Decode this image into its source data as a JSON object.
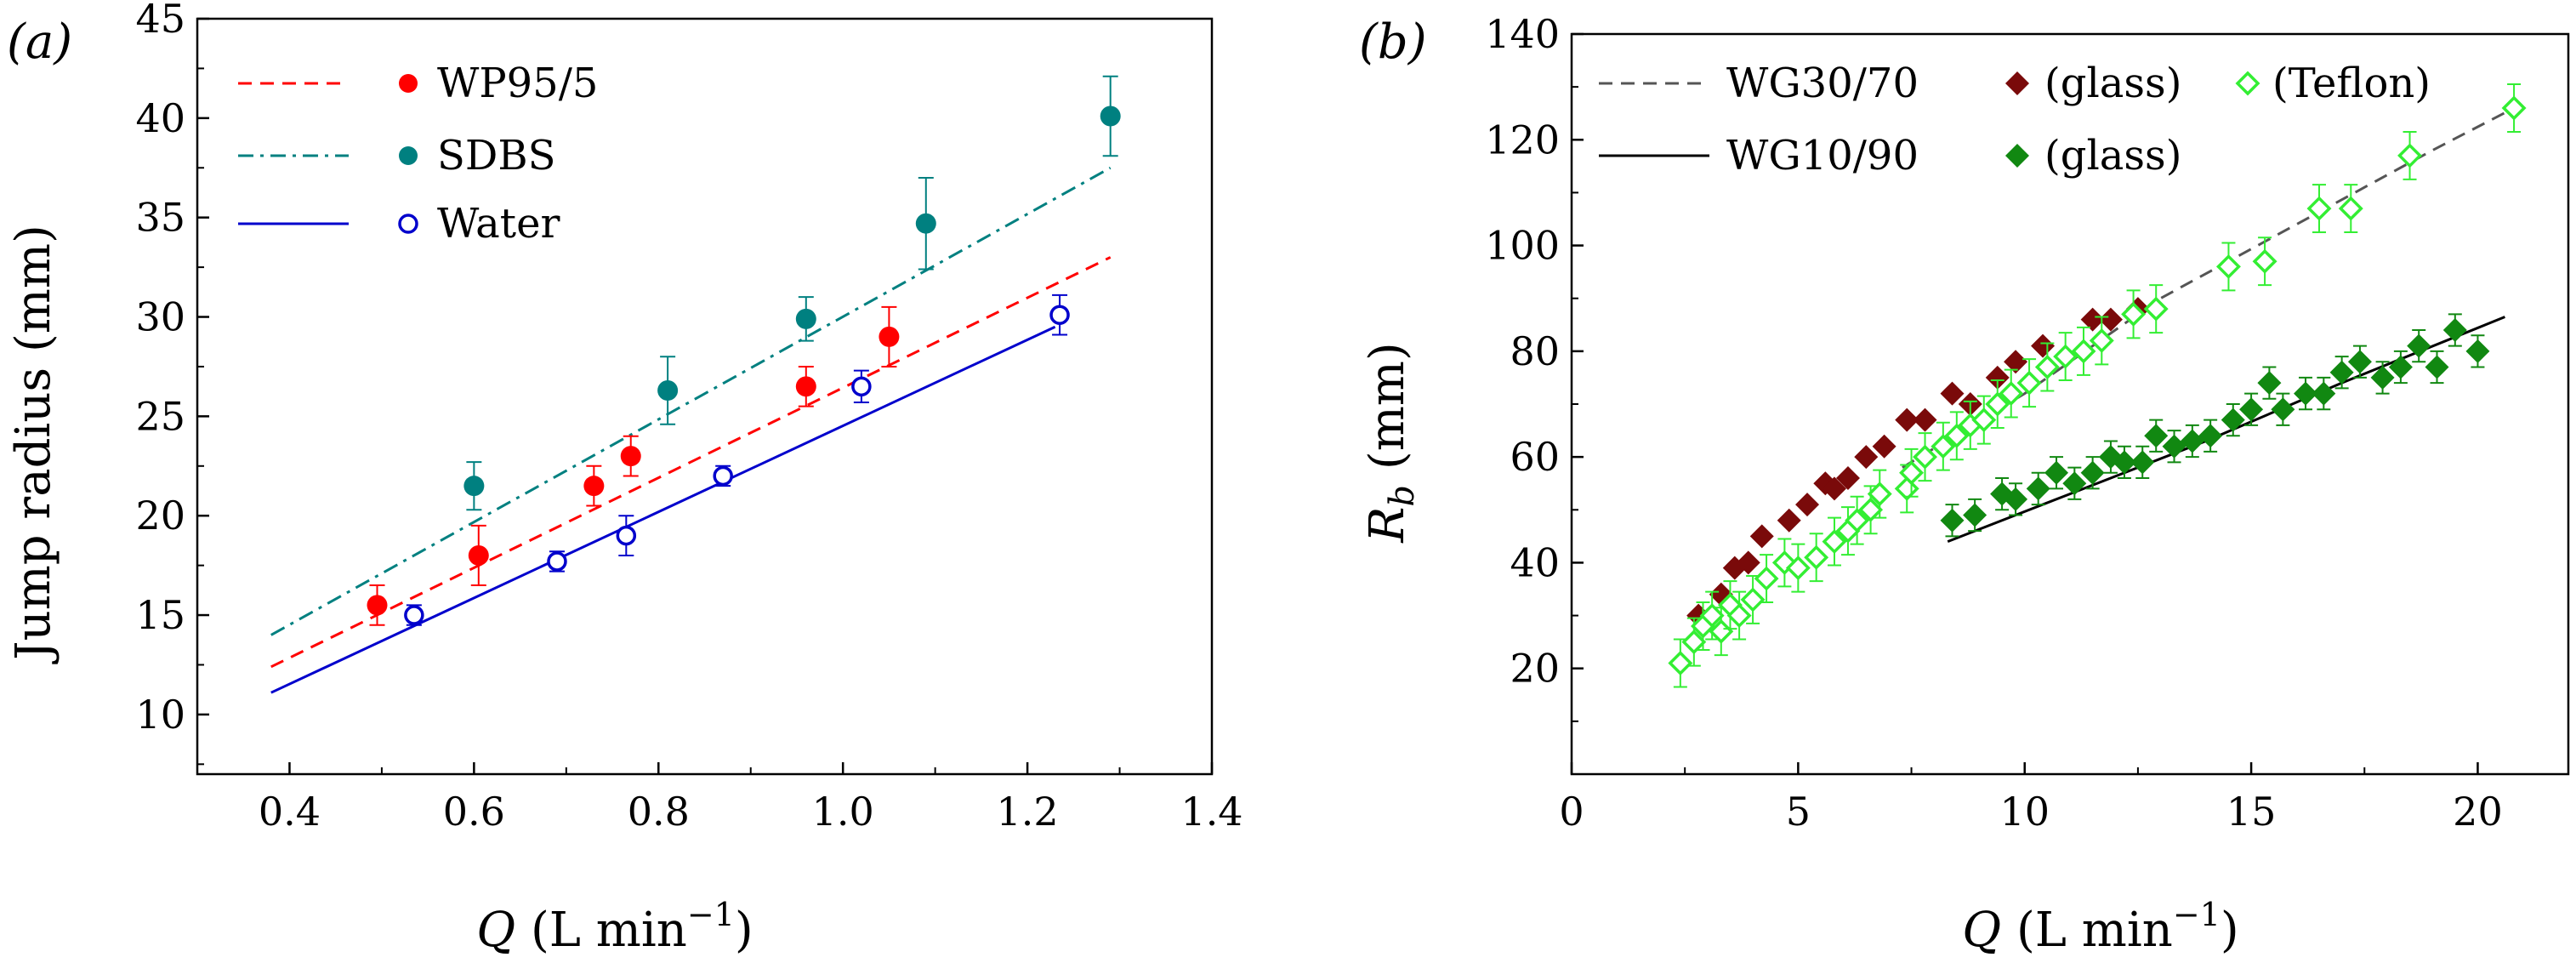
{
  "chart_data": [
    {
      "type": "scatter",
      "panel_label": "(a)",
      "ylabel": "Jump radius (mm)",
      "xlabel": {
        "var": "Q",
        "unit_pre": " (L min",
        "exp": "−1",
        "unit_post": ")"
      },
      "xlim": [
        0.3,
        1.4
      ],
      "ylim": [
        7,
        45
      ],
      "xticks": [
        0.4,
        0.6,
        0.8,
        1.0,
        1.2,
        1.4
      ],
      "xtick_labels": [
        "0.4",
        "0.6",
        "0.8",
        "1.0",
        "1.2",
        "1.4"
      ],
      "yticks": [
        10,
        15,
        20,
        25,
        30,
        35,
        40,
        45
      ],
      "ytick_labels": [
        "10",
        "15",
        "20",
        "25",
        "30",
        "35",
        "40",
        "45"
      ],
      "legend_position": "top-left",
      "series": [
        {
          "name": "WP95/5",
          "color": "#ff0000",
          "marker": "circle-filled",
          "line": "dashed",
          "fit": [
            [
              0.38,
              12.4
            ],
            [
              1.29,
              33.0
            ]
          ],
          "points": [
            [
              0.495,
              15.5,
              1.0
            ],
            [
              0.605,
              18.0,
              1.5
            ],
            [
              0.73,
              21.5,
              1.0
            ],
            [
              0.77,
              23.0,
              1.0
            ],
            [
              0.96,
              26.5,
              1.0
            ],
            [
              1.05,
              29.0,
              1.5
            ]
          ]
        },
        {
          "name": "SDBS",
          "color": "#008080",
          "marker": "circle-filled",
          "line": "dashdot",
          "fit": [
            [
              0.38,
              14.0
            ],
            [
              1.29,
              37.5
            ]
          ],
          "points": [
            [
              0.6,
              21.5,
              1.2
            ],
            [
              0.81,
              26.3,
              1.7
            ],
            [
              0.96,
              29.9,
              1.1
            ],
            [
              1.09,
              34.7,
              2.3
            ],
            [
              1.29,
              40.1,
              2.0
            ]
          ]
        },
        {
          "name": "Water",
          "color": "#0000cc",
          "marker": "circle-open",
          "line": "solid",
          "fit": [
            [
              0.38,
              11.1
            ],
            [
              1.23,
              29.5
            ]
          ],
          "points": [
            [
              0.535,
              15.0,
              0.5
            ],
            [
              0.69,
              17.7,
              0.5
            ],
            [
              0.765,
              19.0,
              1.0
            ],
            [
              0.87,
              22.0,
              0.5
            ],
            [
              1.02,
              26.5,
              0.8
            ],
            [
              1.235,
              30.1,
              1.0
            ]
          ]
        }
      ]
    },
    {
      "type": "scatter",
      "panel_label": "(b)",
      "ylabel": {
        "var": "R",
        "sub": "b",
        "unit": " (mm)"
      },
      "xlabel": {
        "var": "Q",
        "unit_pre": " (L min",
        "exp": "−1",
        "unit_post": ")"
      },
      "xlim": [
        0,
        22
      ],
      "ylim": [
        0,
        140
      ],
      "xticks": [
        0,
        5,
        10,
        15,
        20
      ],
      "xtick_labels": [
        "0",
        "5",
        "10",
        "15",
        "20"
      ],
      "yticks": [
        20,
        40,
        60,
        80,
        100,
        120,
        140
      ],
      "ytick_labels": [
        "20",
        "40",
        "60",
        "80",
        "100",
        "120",
        "140"
      ],
      "legend_position": "top-left",
      "legend": [
        {
          "line_label": "WG30/70",
          "line": "dashed",
          "line_color": "#555555",
          "entries": [
            {
              "label": "(glass)",
              "marker": "diamond-filled",
              "color": "#7a0a0a"
            },
            {
              "label": "(Teflon)",
              "marker": "diamond-open",
              "color": "#33ee33"
            }
          ]
        },
        {
          "line_label": "WG10/90",
          "line": "solid",
          "line_color": "#000000",
          "entries": [
            {
              "label": "(glass)",
              "marker": "diamond-filled",
              "color": "#118811"
            }
          ]
        }
      ],
      "fits": [
        {
          "name": "WG30/70",
          "line": "dashed",
          "color": "#555555",
          "points": [
            [
              7.3,
              58
            ],
            [
              10,
              72
            ],
            [
              13,
              90
            ],
            [
              16,
              104
            ],
            [
              19,
              118
            ],
            [
              20.8,
              126
            ]
          ]
        },
        {
          "name": "WG10/90",
          "line": "solid",
          "color": "#000000",
          "points": [
            [
              8.3,
              44
            ],
            [
              11,
              53
            ],
            [
              14,
              63
            ],
            [
              17,
              74
            ],
            [
              20.6,
              86.5
            ]
          ]
        }
      ],
      "series": [
        {
          "name": "WG30/70 (glass)",
          "color": "#7a0a0a",
          "marker": "diamond-filled",
          "points": [
            [
              2.8,
              30
            ],
            [
              3.3,
              34
            ],
            [
              3.6,
              39
            ],
            [
              3.9,
              40
            ],
            [
              4.2,
              45
            ],
            [
              4.8,
              48
            ],
            [
              5.2,
              51
            ],
            [
              5.6,
              55
            ],
            [
              5.8,
              54
            ],
            [
              6.1,
              56
            ],
            [
              6.5,
              60
            ],
            [
              6.9,
              62
            ],
            [
              7.4,
              67
            ],
            [
              7.8,
              67
            ],
            [
              8.4,
              72
            ],
            [
              8.8,
              70
            ],
            [
              9.4,
              75
            ],
            [
              9.8,
              78
            ],
            [
              10.4,
              81
            ],
            [
              11.5,
              86
            ],
            [
              11.9,
              86
            ],
            [
              12.5,
              88
            ]
          ]
        },
        {
          "name": "WG30/70 (Teflon)",
          "color": "#33ee33",
          "marker": "diamond-open",
          "err": 4.5,
          "points": [
            [
              2.4,
              21
            ],
            [
              2.7,
              25
            ],
            [
              2.9,
              28
            ],
            [
              3.1,
              30
            ],
            [
              3.3,
              27
            ],
            [
              3.5,
              32
            ],
            [
              3.7,
              30
            ],
            [
              4.0,
              33
            ],
            [
              4.3,
              37
            ],
            [
              4.7,
              40
            ],
            [
              5.0,
              39
            ],
            [
              5.4,
              41
            ],
            [
              5.8,
              44
            ],
            [
              6.1,
              46
            ],
            [
              6.3,
              48
            ],
            [
              6.6,
              50
            ],
            [
              6.8,
              53
            ],
            [
              7.4,
              54
            ],
            [
              7.5,
              57
            ],
            [
              7.8,
              60
            ],
            [
              8.2,
              62
            ],
            [
              8.5,
              64
            ],
            [
              8.8,
              66
            ],
            [
              9.1,
              67
            ],
            [
              9.4,
              70
            ],
            [
              9.7,
              72
            ],
            [
              10.1,
              74
            ],
            [
              10.5,
              77
            ],
            [
              10.9,
              79
            ],
            [
              11.3,
              80
            ],
            [
              11.7,
              82
            ],
            [
              12.4,
              87
            ],
            [
              12.9,
              88
            ],
            [
              14.5,
              96
            ],
            [
              15.3,
              97
            ],
            [
              16.5,
              107
            ],
            [
              17.2,
              107
            ],
            [
              18.5,
              117
            ],
            [
              20.8,
              126
            ]
          ]
        },
        {
          "name": "WG10/90 (glass)",
          "color": "#118811",
          "marker": "diamond-filled",
          "err": 3.0,
          "points": [
            [
              8.4,
              48
            ],
            [
              8.9,
              49
            ],
            [
              9.5,
              53
            ],
            [
              9.8,
              52
            ],
            [
              10.3,
              54
            ],
            [
              10.7,
              57
            ],
            [
              11.1,
              55
            ],
            [
              11.5,
              57
            ],
            [
              11.9,
              60
            ],
            [
              12.2,
              59
            ],
            [
              12.6,
              59
            ],
            [
              12.9,
              64
            ],
            [
              13.3,
              62
            ],
            [
              13.7,
              63
            ],
            [
              14.1,
              64
            ],
            [
              14.6,
              67
            ],
            [
              15.0,
              69
            ],
            [
              15.4,
              74
            ],
            [
              15.7,
              69
            ],
            [
              16.2,
              72
            ],
            [
              16.6,
              72
            ],
            [
              17.0,
              76
            ],
            [
              17.4,
              78
            ],
            [
              17.9,
              75
            ],
            [
              18.3,
              77
            ],
            [
              18.7,
              81
            ],
            [
              19.1,
              77
            ],
            [
              19.5,
              84
            ],
            [
              20.0,
              80
            ]
          ]
        }
      ]
    }
  ]
}
